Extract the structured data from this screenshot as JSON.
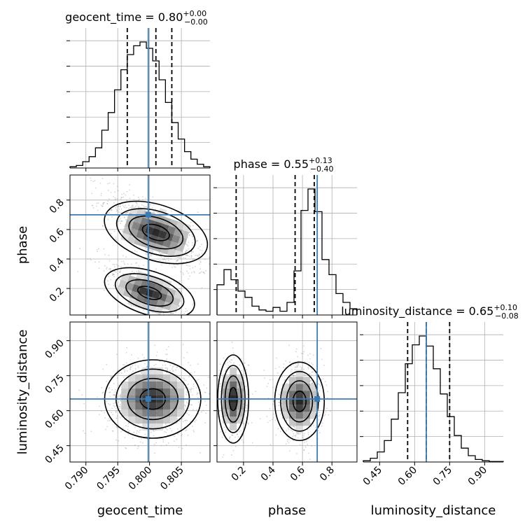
{
  "chart_data": {
    "type": "corner",
    "colors": {
      "truth": "#3b7bb5",
      "hist": "#000000",
      "quantile": "#000000",
      "grid": "#b0b0b0"
    },
    "parameters": [
      {
        "name": "geocent_time",
        "range": [
          0.7875,
          0.8095
        ],
        "ticks": [
          0.79,
          0.795,
          0.8,
          0.805
        ],
        "tick_labels": [
          "0.790",
          "0.795",
          "0.800",
          "0.805"
        ],
        "truth": 0.7998,
        "title": {
          "base": "geocent_time = 0.80",
          "sup": "+0.00",
          "sub": "−0.00"
        },
        "quantiles": [
          0.7965,
          0.801,
          0.8035
        ],
        "hist": [
          0.01,
          0.02,
          0.05,
          0.09,
          0.16,
          0.3,
          0.44,
          0.62,
          0.78,
          0.9,
          0.97,
          1.0,
          0.95,
          0.85,
          0.7,
          0.52,
          0.36,
          0.23,
          0.13,
          0.07,
          0.03,
          0.01
        ]
      },
      {
        "name": "phase",
        "range": [
          0.02,
          0.97
        ],
        "ticks": [
          0.2,
          0.4,
          0.6,
          0.8
        ],
        "tick_labels": [
          "0.2",
          "0.4",
          "0.6",
          "0.8"
        ],
        "truth": 0.7,
        "title": {
          "base": "phase = 0.55",
          "sup": "+0.13",
          "sub": "−0.40"
        },
        "quantiles": [
          0.15,
          0.55,
          0.68
        ],
        "hist": [
          0.24,
          0.36,
          0.28,
          0.19,
          0.14,
          0.07,
          0.04,
          0.03,
          0.06,
          0.03,
          0.1,
          0.35,
          0.83,
          1.0,
          0.82,
          0.44,
          0.32,
          0.17,
          0.1,
          0.05
        ]
      },
      {
        "name": "luminosity_distance",
        "range": [
          0.38,
          0.98
        ],
        "ticks": [
          0.45,
          0.6,
          0.75,
          0.9
        ],
        "tick_labels": [
          "0.45",
          "0.60",
          "0.75",
          "0.90"
        ],
        "truth": 0.65,
        "title": {
          "base": "luminosity_distance = 0.65",
          "sup": "+0.10",
          "sub": "−0.08"
        },
        "quantiles": [
          0.57,
          0.65,
          0.75
        ],
        "hist": [
          0.01,
          0.03,
          0.08,
          0.17,
          0.34,
          0.55,
          0.78,
          0.93,
          1.0,
          0.92,
          0.74,
          0.54,
          0.36,
          0.21,
          0.11,
          0.05,
          0.02,
          0.01,
          0.004,
          0.004
        ]
      }
    ],
    "truth_point": {
      "geocent_time": 0.7998,
      "phase": 0.7,
      "luminosity_distance": 0.65
    },
    "grid": true
  }
}
